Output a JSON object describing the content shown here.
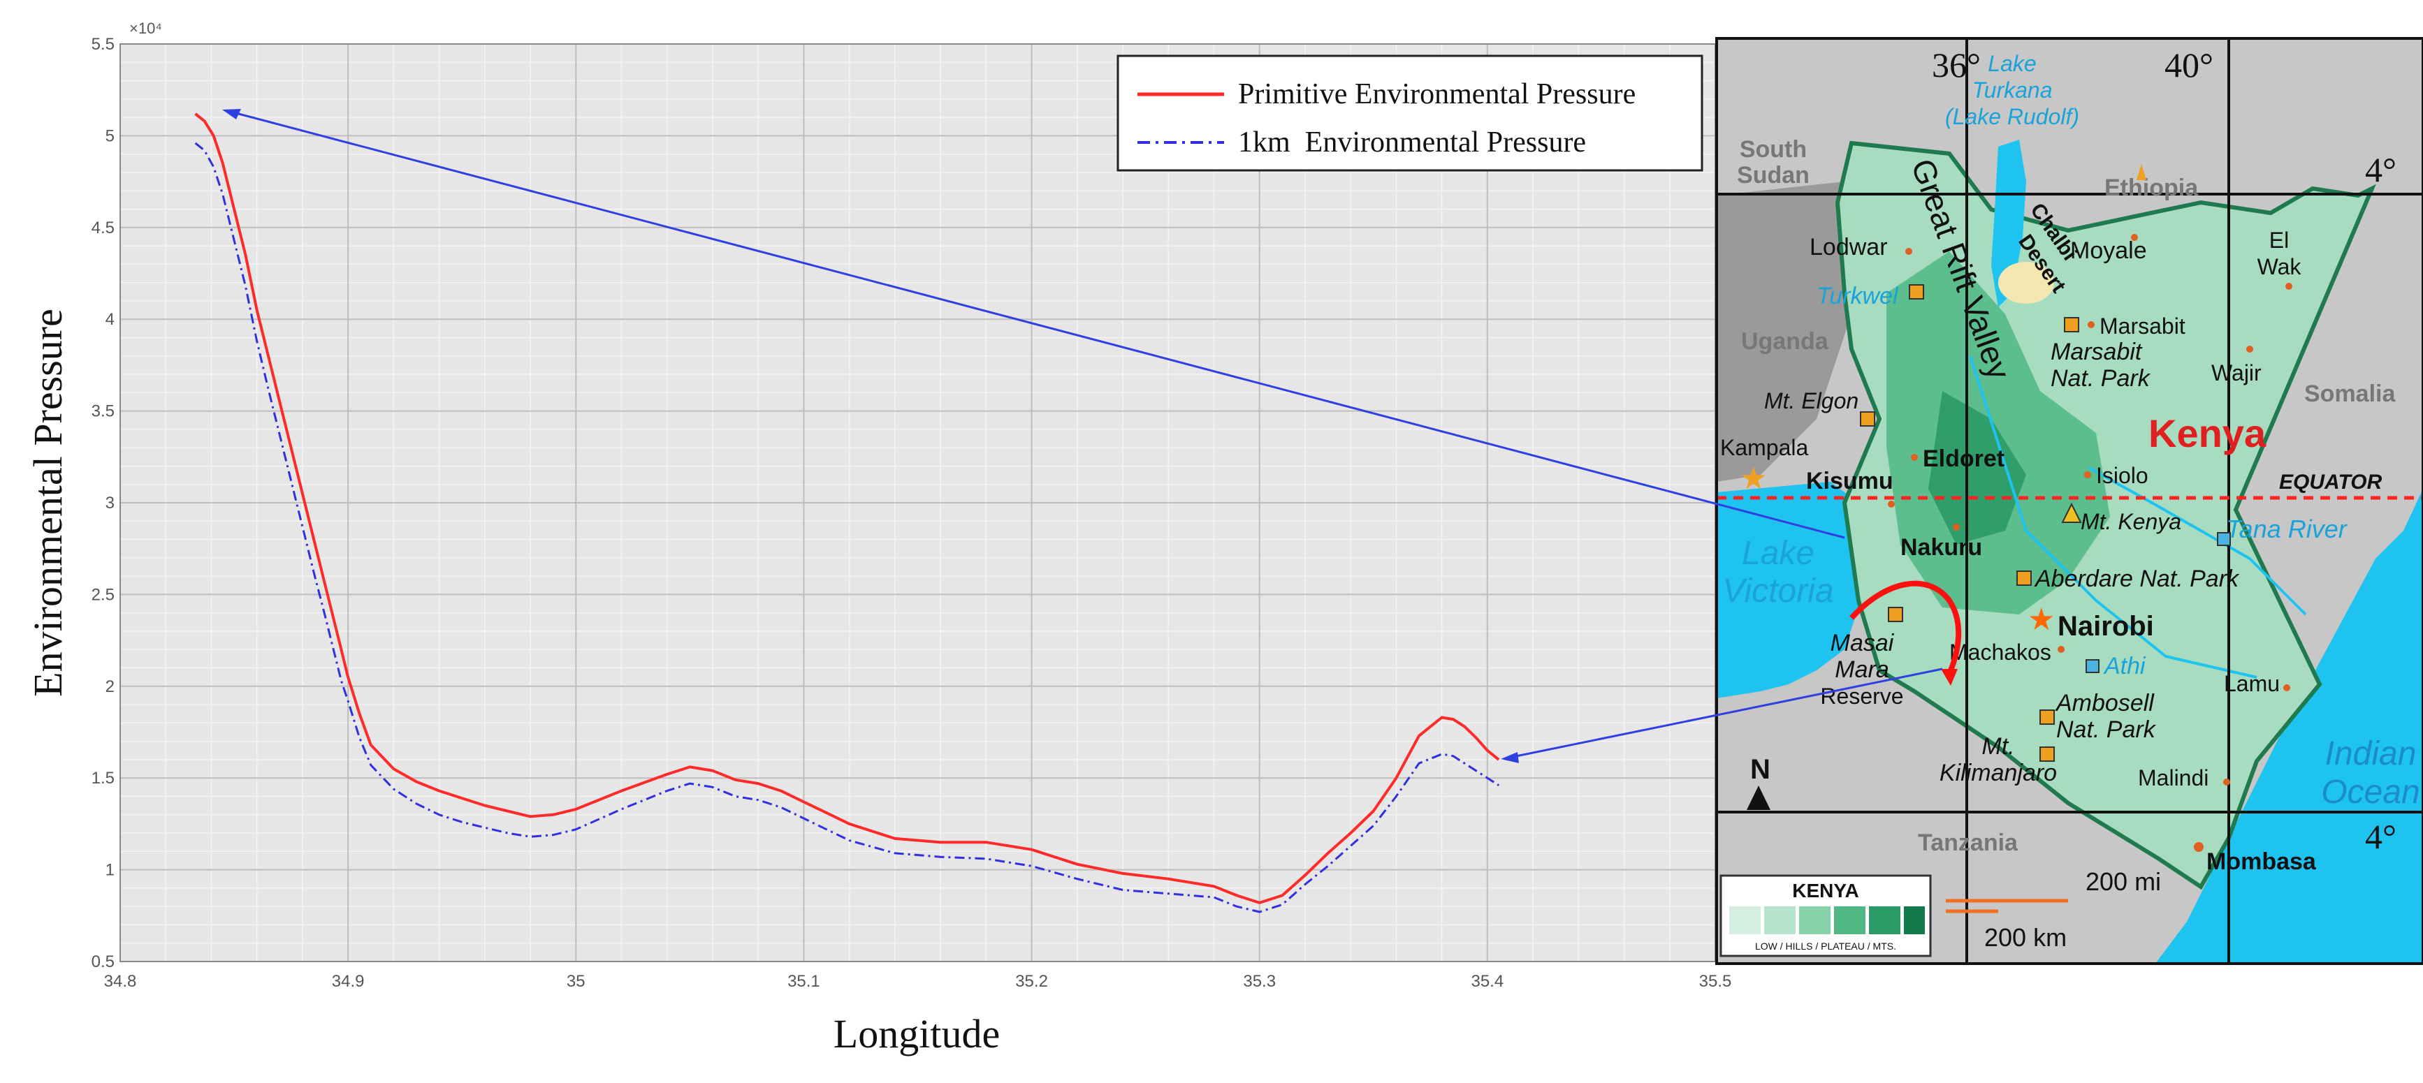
{
  "chart_data": {
    "type": "line",
    "xlabel": "Longitude",
    "ylabel": "Environmental Pressure",
    "y_exponent_label": "×10⁴",
    "xlim": [
      34.8,
      35.5
    ],
    "ylim": [
      0.5,
      5.5
    ],
    "y_scale": 10000,
    "xticks": [
      34.8,
      34.9,
      35,
      35.1,
      35.2,
      35.3,
      35.4,
      35.5
    ],
    "xtick_labels": [
      "34.8",
      "34.9",
      "35",
      "35.1",
      "35.2",
      "35.3",
      "35.4",
      "35.5"
    ],
    "yticks": [
      0.5,
      1,
      1.5,
      2,
      2.5,
      3,
      3.5,
      4,
      4.5,
      5,
      5.5
    ],
    "ytick_labels": [
      "0.5",
      "1",
      "1.5",
      "2",
      "2.5",
      "3",
      "3.5",
      "4",
      "4.5",
      "5",
      "5.5"
    ],
    "grid": true,
    "legend_position": "top-right",
    "series": [
      {
        "name": "Primitive Environmental Pressure",
        "color": "#ff2a2a",
        "style": "solid",
        "x": [
          34.833,
          34.837,
          34.841,
          34.845,
          34.85,
          34.855,
          34.86,
          34.865,
          34.87,
          34.875,
          34.88,
          34.885,
          34.89,
          34.894,
          34.897,
          34.9,
          34.905,
          34.91,
          34.92,
          34.93,
          34.94,
          34.95,
          34.96,
          34.97,
          34.98,
          34.99,
          35.0,
          35.02,
          35.04,
          35.05,
          35.06,
          35.07,
          35.08,
          35.09,
          35.1,
          35.11,
          35.12,
          35.14,
          35.16,
          35.18,
          35.2,
          35.22,
          35.24,
          35.26,
          35.28,
          35.29,
          35.3,
          35.31,
          35.32,
          35.33,
          35.34,
          35.35,
          35.36,
          35.37,
          35.38,
          35.385,
          35.39,
          35.395,
          35.4,
          35.405
        ],
        "y": [
          5.12,
          5.08,
          5.0,
          4.85,
          4.6,
          4.35,
          4.05,
          3.8,
          3.55,
          3.3,
          3.05,
          2.8,
          2.55,
          2.35,
          2.2,
          2.05,
          1.85,
          1.68,
          1.55,
          1.48,
          1.43,
          1.39,
          1.35,
          1.32,
          1.29,
          1.3,
          1.33,
          1.43,
          1.52,
          1.56,
          1.54,
          1.49,
          1.47,
          1.43,
          1.37,
          1.31,
          1.25,
          1.17,
          1.15,
          1.15,
          1.11,
          1.03,
          0.98,
          0.95,
          0.91,
          0.86,
          0.82,
          0.86,
          0.97,
          1.09,
          1.2,
          1.32,
          1.5,
          1.73,
          1.83,
          1.82,
          1.78,
          1.72,
          1.65,
          1.6
        ]
      },
      {
        "name": "1km  Environmental Pressure",
        "color": "#3030e0",
        "style": "dashdot",
        "x": [
          34.833,
          34.837,
          34.841,
          34.845,
          34.85,
          34.855,
          34.86,
          34.865,
          34.87,
          34.875,
          34.88,
          34.885,
          34.89,
          34.894,
          34.897,
          34.9,
          34.905,
          34.91,
          34.92,
          34.93,
          34.94,
          34.95,
          34.96,
          34.97,
          34.98,
          34.99,
          35.0,
          35.02,
          35.04,
          35.05,
          35.06,
          35.07,
          35.08,
          35.09,
          35.1,
          35.11,
          35.12,
          35.14,
          35.16,
          35.18,
          35.2,
          35.22,
          35.24,
          35.26,
          35.28,
          35.29,
          35.3,
          35.31,
          35.32,
          35.33,
          35.34,
          35.35,
          35.36,
          35.37,
          35.38,
          35.385,
          35.39,
          35.395,
          35.4,
          35.405
        ],
        "y": [
          4.96,
          4.92,
          4.83,
          4.68,
          4.43,
          4.18,
          3.88,
          3.62,
          3.37,
          3.12,
          2.87,
          2.62,
          2.38,
          2.18,
          2.03,
          1.92,
          1.72,
          1.57,
          1.44,
          1.36,
          1.3,
          1.26,
          1.23,
          1.2,
          1.18,
          1.19,
          1.22,
          1.33,
          1.43,
          1.47,
          1.45,
          1.4,
          1.38,
          1.34,
          1.28,
          1.22,
          1.16,
          1.09,
          1.07,
          1.06,
          1.02,
          0.95,
          0.89,
          0.87,
          0.85,
          0.8,
          0.77,
          0.81,
          0.92,
          1.02,
          1.13,
          1.24,
          1.4,
          1.58,
          1.63,
          1.62,
          1.58,
          1.54,
          1.5,
          1.46
        ]
      }
    ]
  },
  "map": {
    "lat_labels": [
      "36°",
      "40°"
    ],
    "lon_labels": [
      "4°",
      "4°"
    ],
    "countries": [
      "South Sudan",
      "Ethiopia",
      "Uganda",
      "Somalia",
      "Tanzania"
    ],
    "country_name": "Kenya",
    "equator_label": "EQUATOR",
    "lake_turkana": [
      "Lake",
      "Turkana",
      "(Lake Rudolf)"
    ],
    "rift_valley": "Great Rift Valley",
    "chalbi_desert": [
      "Chalbi",
      "Desert"
    ],
    "lake_victoria": [
      "Lake",
      "Victoria"
    ],
    "indian_ocean": [
      "Indian",
      "Ocean"
    ],
    "places": {
      "lodwar": "Lodwar",
      "moyale": "Moyale",
      "el_wak": [
        "El",
        "Wak"
      ],
      "turkwel": "Turkwel",
      "marsabit": "Marsabit",
      "marsabit_park": [
        "Marsabit",
        "Nat. Park"
      ],
      "wajir": "Wajir",
      "mt_elgon": "Mt. Elgon",
      "eldoret": "Eldoret",
      "kampala": "Kampala",
      "kisumu": "Kisumu",
      "isiolo": "Isiolo",
      "mt_kenya": "Mt. Kenya",
      "tana_river": "Tana River",
      "nakuru": "Nakuru",
      "aberdare": "Aberdare Nat. Park",
      "nairobi": "Nairobi",
      "masai_mara": [
        "Masai",
        "Mara",
        "Reserve"
      ],
      "machakos": "Machakos",
      "athi": "Athi",
      "lamu": "Lamu",
      "amboseli": [
        "Ambosell",
        "Nat. Park"
      ],
      "kilimanjaro": [
        "Mt.",
        "Kilimanjaro"
      ],
      "malindi": "Malindi",
      "mombasa": "Mombasa"
    },
    "north_label": "N",
    "scale_mi": "200 mi",
    "scale_km": "200 km",
    "legend_title": "KENYA",
    "legend_caption": "LOW / HILLS / PLATEAU / MTS."
  }
}
